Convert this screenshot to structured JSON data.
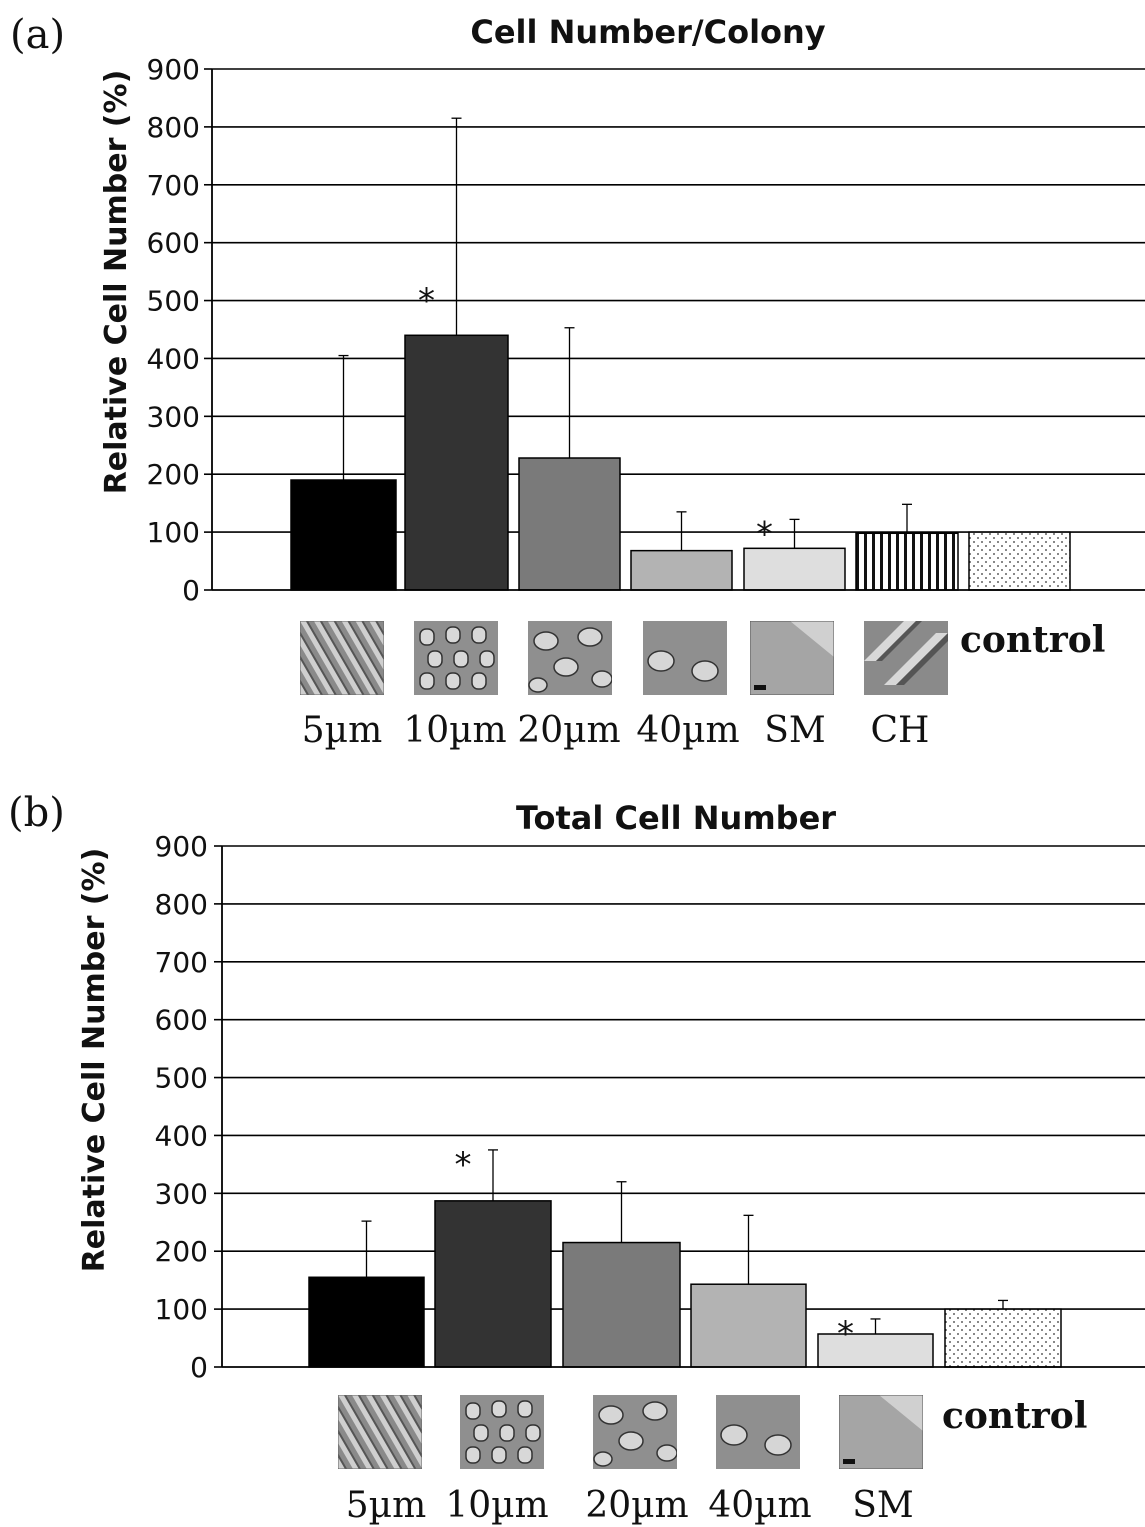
{
  "chart_data": [
    {
      "panel": "(a)",
      "type": "bar",
      "title": "Cell Number/Colony",
      "ylabel": "Relative Cell Number (%)",
      "ylim": [
        0,
        900
      ],
      "yticks": [
        "0",
        "100",
        "200",
        "300",
        "400",
        "500",
        "600",
        "700",
        "800",
        "900"
      ],
      "grid": true,
      "bars": [
        {
          "key": "5um",
          "value": 190,
          "error": 405,
          "fill": "#000000",
          "pattern": "solid",
          "significant": false
        },
        {
          "key": "10um",
          "value": 440,
          "error": 815,
          "fill": "#333333",
          "pattern": "solid",
          "significant": true
        },
        {
          "key": "20um",
          "value": 228,
          "error": 453,
          "fill": "#7a7a7a",
          "pattern": "solid",
          "significant": false
        },
        {
          "key": "40um",
          "value": 68,
          "error": 135,
          "fill": "#b3b3b3",
          "pattern": "solid",
          "significant": false
        },
        {
          "key": "SM",
          "value": 72,
          "error": 122,
          "fill": "#dedede",
          "pattern": "solid",
          "significant": true
        },
        {
          "key": "CH",
          "value": 98,
          "error": 148,
          "fill": "#ffffff",
          "pattern": "vertical-stripes",
          "significant": false
        },
        {
          "key": "control",
          "value": 100,
          "error": null,
          "fill": "#ffffff",
          "pattern": "dots",
          "significant": false
        }
      ],
      "categories": [
        "5µm",
        "10µm",
        "20µm",
        "40µm",
        "SM",
        "CH",
        "control"
      ],
      "significance_marker": "*"
    },
    {
      "panel": "(b)",
      "type": "bar",
      "title": "Total Cell Number",
      "ylabel": "Relative Cell Number (%)",
      "ylim": [
        0,
        900
      ],
      "yticks": [
        "0",
        "100",
        "200",
        "300",
        "400",
        "500",
        "600",
        "700",
        "800",
        "900"
      ],
      "grid": true,
      "bars": [
        {
          "key": "5um",
          "value": 155,
          "error": 252,
          "fill": "#000000",
          "pattern": "solid",
          "significant": false
        },
        {
          "key": "10um",
          "value": 287,
          "error": 375,
          "fill": "#333333",
          "pattern": "solid",
          "significant": true
        },
        {
          "key": "20um",
          "value": 215,
          "error": 320,
          "fill": "#7a7a7a",
          "pattern": "solid",
          "significant": false
        },
        {
          "key": "40um",
          "value": 143,
          "error": 262,
          "fill": "#b3b3b3",
          "pattern": "solid",
          "significant": false
        },
        {
          "key": "SM",
          "value": 57,
          "error": 83,
          "fill": "#dedede",
          "pattern": "solid",
          "significant": true
        },
        {
          "key": "control",
          "value": 100,
          "error": 115,
          "fill": "#ffffff",
          "pattern": "dots",
          "significant": false
        }
      ],
      "categories": [
        "5µm",
        "10µm",
        "20µm",
        "40µm",
        "SM",
        "control"
      ],
      "significance_marker": "*"
    }
  ]
}
